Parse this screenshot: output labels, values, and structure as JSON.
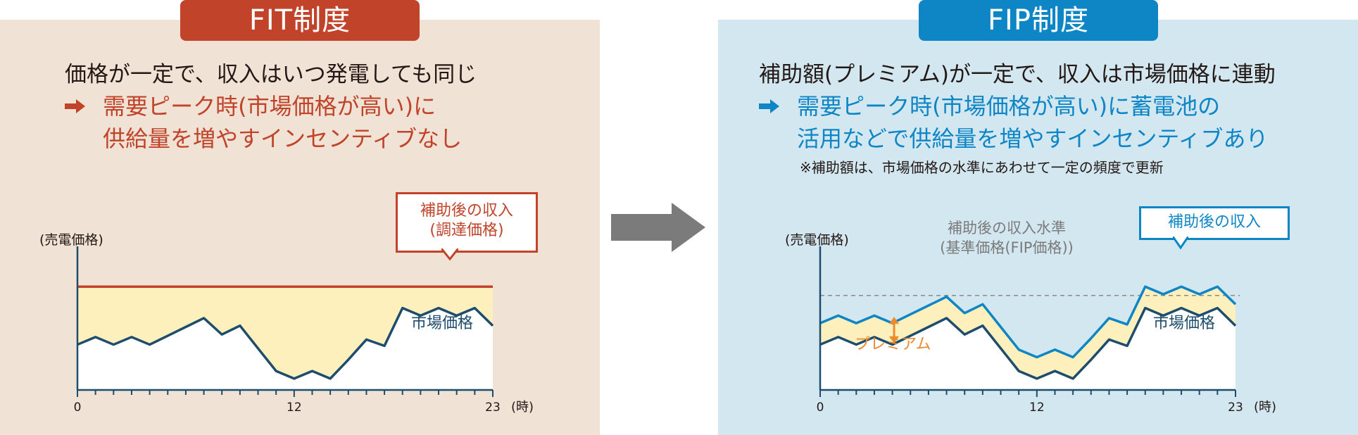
{
  "colors": {
    "fit_accent": "#c0432a",
    "fip_accent": "#0e86c6",
    "market": "#1d4c6c",
    "premium": "#ed8a2c",
    "band": "#fdf0bd"
  },
  "fit": {
    "header": "FIT制度",
    "line1": "価格が一定で、収入はいつ発電しても同じ",
    "sub_line1": "需要ピーク時(市場価格が高い)に",
    "sub_line2": "供給量を増やすインセンティブなし",
    "y_label": "(売電価格)",
    "callout_line1": "補助後の収入",
    "callout_line2": "(調達価格)",
    "market_label": "市場価格"
  },
  "fip": {
    "header": "FIP制度",
    "line1": "補助額(プレミアム)が一定で、収入は市場価格に連動",
    "sub_line1": "需要ピーク時(市場価格が高い)に蓄電池の",
    "sub_line2": "活用などで供給量を増やすインセンティブあり",
    "note": "※補助額は、市場価格の水準にあわせて一定の頻度で更新",
    "y_label": "(売電価格)",
    "ref_line1": "補助後の収入水準",
    "ref_line2": "(基準価格(FIP価格))",
    "callout": "補助後の収入",
    "market_label": "市場価格",
    "premium_label": "プレミアム"
  },
  "x_axis": {
    "ticks": [
      "0",
      "12",
      "23"
    ],
    "unit": "(時)"
  },
  "chart_data": [
    {
      "type": "line",
      "x": [
        0,
        1,
        2,
        3,
        4,
        5,
        6,
        7,
        8,
        9,
        10,
        11,
        12,
        13,
        14,
        15,
        16,
        17,
        18,
        19,
        20,
        21,
        22,
        23
      ],
      "series": [
        {
          "name": "市場価格",
          "values": [
            3.6,
            4.2,
            3.6,
            4.2,
            3.6,
            4.3,
            5.0,
            5.7,
            4.4,
            5.1,
            3.3,
            1.5,
            0.9,
            1.5,
            0.9,
            2.4,
            4.0,
            3.5,
            6.5,
            5.9,
            6.5,
            5.9,
            6.5,
            5.1
          ]
        },
        {
          "name": "補助後の収入",
          "values": [
            8.2,
            8.2,
            8.2,
            8.2,
            8.2,
            8.2,
            8.2,
            8.2,
            8.2,
            8.2,
            8.2,
            8.2,
            8.2,
            8.2,
            8.2,
            8.2,
            8.2,
            8.2,
            8.2,
            8.2,
            8.2,
            8.2,
            8.2,
            8.2
          ]
        }
      ],
      "ylim": [
        0,
        10
      ]
    },
    {
      "type": "line",
      "x": [
        0,
        1,
        2,
        3,
        4,
        5,
        6,
        7,
        8,
        9,
        10,
        11,
        12,
        13,
        14,
        15,
        16,
        17,
        18,
        19,
        20,
        21,
        22,
        23
      ],
      "series": [
        {
          "name": "市場価格",
          "values": [
            3.6,
            4.2,
            3.6,
            4.2,
            3.6,
            4.3,
            5.0,
            5.7,
            4.4,
            5.1,
            3.3,
            1.5,
            0.9,
            1.5,
            0.9,
            2.4,
            4.0,
            3.5,
            6.5,
            5.9,
            6.5,
            5.9,
            6.5,
            5.1
          ]
        },
        {
          "name": "補助後の収入",
          "values": [
            5.3,
            5.9,
            5.3,
            5.9,
            5.3,
            6.0,
            6.7,
            7.4,
            6.1,
            6.8,
            5.0,
            3.2,
            2.6,
            3.2,
            2.6,
            4.1,
            5.7,
            5.2,
            8.2,
            7.6,
            8.2,
            7.6,
            8.2,
            6.8
          ]
        }
      ],
      "reference_level": 7.5,
      "ylim": [
        0,
        10
      ]
    }
  ]
}
